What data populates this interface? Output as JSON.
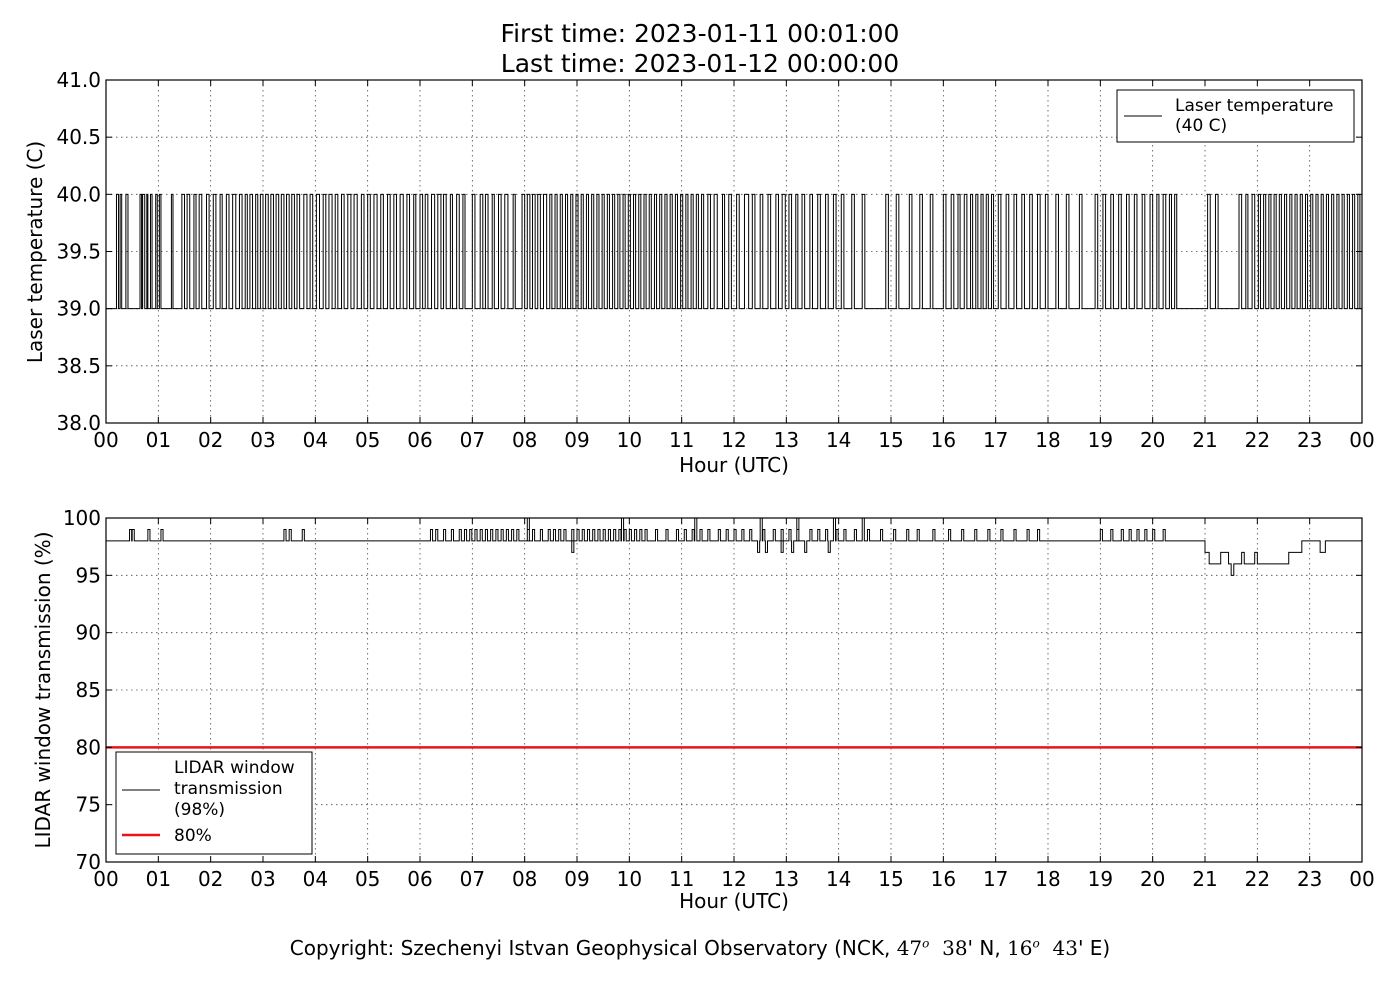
{
  "figure": {
    "title_line1": "First time: 2023-01-11 00:01:00",
    "title_line2": "Last time: 2023-01-12 00:00:00",
    "copyright": {
      "prefix": "Copyright: Szechenyi Istvan Geophysical Observatory (NCK, ",
      "lat_deg": "47",
      "lat_min": "38",
      "lat_suffix": "' N, ",
      "lon_deg": "16",
      "lon_min": "43",
      "lon_suffix": "' E)",
      "degree_sign": "o"
    }
  },
  "chart_data": [
    {
      "type": "line",
      "xlabel": "Hour (UTC)",
      "ylabel": "Laser temperature (C)",
      "ylim": [
        38.0,
        41.0
      ],
      "xlim": [
        0,
        24
      ],
      "x_tick_labels": [
        "00",
        "01",
        "02",
        "03",
        "04",
        "05",
        "06",
        "07",
        "08",
        "09",
        "10",
        "11",
        "12",
        "13",
        "14",
        "15",
        "16",
        "17",
        "18",
        "19",
        "20",
        "21",
        "22",
        "23",
        "00"
      ],
      "y_ticks": [
        38.0,
        38.5,
        39.0,
        39.5,
        40.0,
        40.5,
        41.0
      ],
      "y_tick_labels": [
        "38.0",
        "38.5",
        "39.0",
        "39.5",
        "40.0",
        "40.5",
        "41.0"
      ],
      "grid": true,
      "legend_position": "top-right",
      "line_color": "#000000",
      "series": [
        {
          "name": "Laser temperature\n(40 C)",
          "description_values": "Laser temperature toggles between 39.0 and 40.0 C throughout the day",
          "low": 39.0,
          "high": 40.0,
          "toggle_hours": [
            0.2,
            0.24,
            0.27,
            0.3,
            0.38,
            0.42,
            0.65,
            0.68,
            0.7,
            0.74,
            0.78,
            0.8,
            0.85,
            0.88,
            0.95,
            0.98,
            1.02,
            1.05,
            1.25,
            1.28,
            1.45,
            1.5,
            1.55,
            1.6,
            1.68,
            1.72,
            1.78,
            1.83,
            1.92,
            1.97,
            2.05,
            2.1,
            2.18,
            2.22,
            2.3,
            2.35,
            2.42,
            2.48,
            2.55,
            2.6,
            2.66,
            2.7,
            2.75,
            2.8,
            2.86,
            2.9,
            2.95,
            3.0,
            3.05,
            3.1,
            3.15,
            3.2,
            3.25,
            3.3,
            3.35,
            3.4,
            3.45,
            3.5,
            3.55,
            3.6,
            3.65,
            3.7,
            3.78,
            3.84,
            3.9,
            3.95,
            4.02,
            4.08,
            4.15,
            4.2,
            4.26,
            4.32,
            4.38,
            4.43,
            4.5,
            4.55,
            4.62,
            4.68,
            4.74,
            4.8,
            4.88,
            4.93,
            5.0,
            5.05,
            5.12,
            5.18,
            5.25,
            5.3,
            5.38,
            5.43,
            5.5,
            5.55,
            5.62,
            5.68,
            5.75,
            5.8,
            5.88,
            5.92,
            6.0,
            6.05,
            6.1,
            6.15,
            6.22,
            6.28,
            6.34,
            6.4,
            6.45,
            6.5,
            6.58,
            6.62,
            6.7,
            6.75,
            6.82,
            6.86,
            7.0,
            7.05,
            7.15,
            7.2,
            7.25,
            7.3,
            7.38,
            7.42,
            7.5,
            7.55,
            7.62,
            7.68,
            7.78,
            7.82,
            7.95,
            8.0,
            8.05,
            8.1,
            8.15,
            8.2,
            8.25,
            8.3,
            8.36,
            8.42,
            8.48,
            8.52,
            8.58,
            8.62,
            8.68,
            8.72,
            8.78,
            8.82,
            8.88,
            8.92,
            8.98,
            9.02,
            9.08,
            9.12,
            9.18,
            9.22,
            9.28,
            9.32,
            9.38,
            9.42,
            9.48,
            9.52,
            9.58,
            9.62,
            9.68,
            9.72,
            9.78,
            9.82,
            9.88,
            9.92,
            9.98,
            10.02,
            10.08,
            10.12,
            10.18,
            10.22,
            10.28,
            10.32,
            10.38,
            10.42,
            10.48,
            10.52,
            10.58,
            10.62,
            10.68,
            10.72,
            10.78,
            10.82,
            10.88,
            10.92,
            10.98,
            11.02,
            11.08,
            11.12,
            11.18,
            11.22,
            11.28,
            11.32,
            11.38,
            11.42,
            11.5,
            11.55,
            11.62,
            11.68,
            11.78,
            11.82,
            11.9,
            11.95,
            12.05,
            12.1,
            12.2,
            12.28,
            12.35,
            12.4,
            12.5,
            12.55,
            12.65,
            12.7,
            12.8,
            12.85,
            12.92,
            12.98,
            13.05,
            13.1,
            13.18,
            13.22,
            13.3,
            13.35,
            13.45,
            13.5,
            13.6,
            13.65,
            13.75,
            13.8,
            13.9,
            13.95,
            14.05,
            14.1,
            14.25,
            14.3,
            14.45,
            14.5,
            14.9,
            14.95,
            15.1,
            15.15,
            15.35,
            15.4,
            15.55,
            15.6,
            15.75,
            15.8,
            16.0,
            16.05,
            16.15,
            16.2,
            16.28,
            16.32,
            16.4,
            16.45,
            16.52,
            16.56,
            16.62,
            16.66,
            16.72,
            16.76,
            16.82,
            16.86,
            16.92,
            16.96,
            17.05,
            17.1,
            17.2,
            17.25,
            17.35,
            17.4,
            17.5,
            17.55,
            17.65,
            17.7,
            17.8,
            17.85,
            17.95,
            18.0,
            18.15,
            18.2,
            18.35,
            18.4,
            18.6,
            18.65,
            18.9,
            18.95,
            19.05,
            19.1,
            19.2,
            19.25,
            19.35,
            19.4,
            19.5,
            19.55,
            19.65,
            19.7,
            19.8,
            19.85,
            19.95,
            20.0,
            20.08,
            20.12,
            20.2,
            20.25,
            20.32,
            20.36,
            20.42,
            20.46,
            21.05,
            21.1,
            21.2,
            21.25,
            21.65,
            21.7,
            21.78,
            21.82,
            21.9,
            21.95,
            22.02,
            22.06,
            22.12,
            22.16,
            22.22,
            22.26,
            22.32,
            22.36,
            22.42,
            22.46,
            22.52,
            22.56,
            22.62,
            22.66,
            22.72,
            22.76,
            22.82,
            22.86,
            22.92,
            22.96,
            23.02,
            23.06,
            23.12,
            23.16,
            23.22,
            23.26,
            23.32,
            23.36,
            23.42,
            23.46,
            23.52,
            23.56,
            23.62,
            23.66,
            23.72,
            23.76,
            23.82,
            23.86,
            23.92,
            23.96
          ]
        }
      ]
    },
    {
      "type": "line",
      "xlabel": "Hour (UTC)",
      "ylabel": "LIDAR window transmission (%)",
      "ylim": [
        70,
        100
      ],
      "xlim": [
        0,
        24
      ],
      "x_tick_labels": [
        "00",
        "01",
        "02",
        "03",
        "04",
        "05",
        "06",
        "07",
        "08",
        "09",
        "10",
        "11",
        "12",
        "13",
        "14",
        "15",
        "16",
        "17",
        "18",
        "19",
        "20",
        "21",
        "22",
        "23",
        "00"
      ],
      "y_ticks": [
        70,
        75,
        80,
        85,
        90,
        95,
        100
      ],
      "y_tick_labels": [
        "70",
        "75",
        "80",
        "85",
        "90",
        "95",
        "100"
      ],
      "grid": true,
      "legend_position": "bottom-left",
      "series": [
        {
          "name": "LIDAR window\ntransmission\n(98%)",
          "color": "#000000",
          "baseline": 98,
          "spikes_up_to_99": [
            0.45,
            0.5,
            0.8,
            1.05,
            3.4,
            3.5,
            3.75,
            6.2,
            6.3,
            6.45,
            6.6,
            6.75,
            6.85,
            6.95,
            7.05,
            7.15,
            7.25,
            7.35,
            7.45,
            7.55,
            7.65,
            7.75,
            7.85,
            8.05,
            8.15,
            8.3,
            8.45,
            8.55,
            8.65,
            8.75,
            8.9,
            9.0,
            9.1,
            9.2,
            9.3,
            9.4,
            9.5,
            9.6,
            9.7,
            9.8,
            9.9,
            10.0,
            10.1,
            10.2,
            10.3,
            10.5,
            10.7,
            10.9,
            11.05,
            11.2,
            11.35,
            11.5,
            11.7,
            11.85,
            12.0,
            12.15,
            12.3,
            12.55,
            12.75,
            12.9,
            13.05,
            13.2,
            13.45,
            13.6,
            13.75,
            13.95,
            14.1,
            14.3,
            14.55,
            14.8,
            15.05,
            15.3,
            15.5,
            15.8,
            16.1,
            16.35,
            16.6,
            16.85,
            17.1,
            17.35,
            17.6,
            17.8,
            19.0,
            19.2,
            19.4,
            19.55,
            19.7,
            19.85,
            20.0,
            20.2
          ],
          "spikes_to_100": [
            8.05,
            9.85,
            11.25,
            12.5,
            13.2,
            13.9,
            14.45
          ],
          "dips": [
            [
              8.9,
              97
            ],
            [
              12.45,
              97
            ],
            [
              12.6,
              97
            ],
            [
              12.9,
              97
            ],
            [
              13.1,
              97
            ],
            [
              13.35,
              97
            ],
            [
              13.8,
              97
            ]
          ],
          "late_segment": [
            [
              20.95,
              98
            ],
            [
              21.0,
              97
            ],
            [
              21.08,
              96
            ],
            [
              21.3,
              97
            ],
            [
              21.45,
              96
            ],
            [
              21.5,
              95
            ],
            [
              21.55,
              96
            ],
            [
              21.7,
              97
            ],
            [
              21.75,
              96
            ],
            [
              21.95,
              97
            ],
            [
              22.0,
              96
            ],
            [
              22.3,
              96
            ],
            [
              22.6,
              97
            ],
            [
              22.8,
              97
            ],
            [
              22.85,
              98
            ],
            [
              23.0,
              98
            ],
            [
              23.2,
              97
            ],
            [
              23.3,
              98
            ]
          ],
          "end_value": 98
        },
        {
          "name": "80%",
          "color": "#e8141a",
          "constant": 80
        }
      ]
    }
  ]
}
